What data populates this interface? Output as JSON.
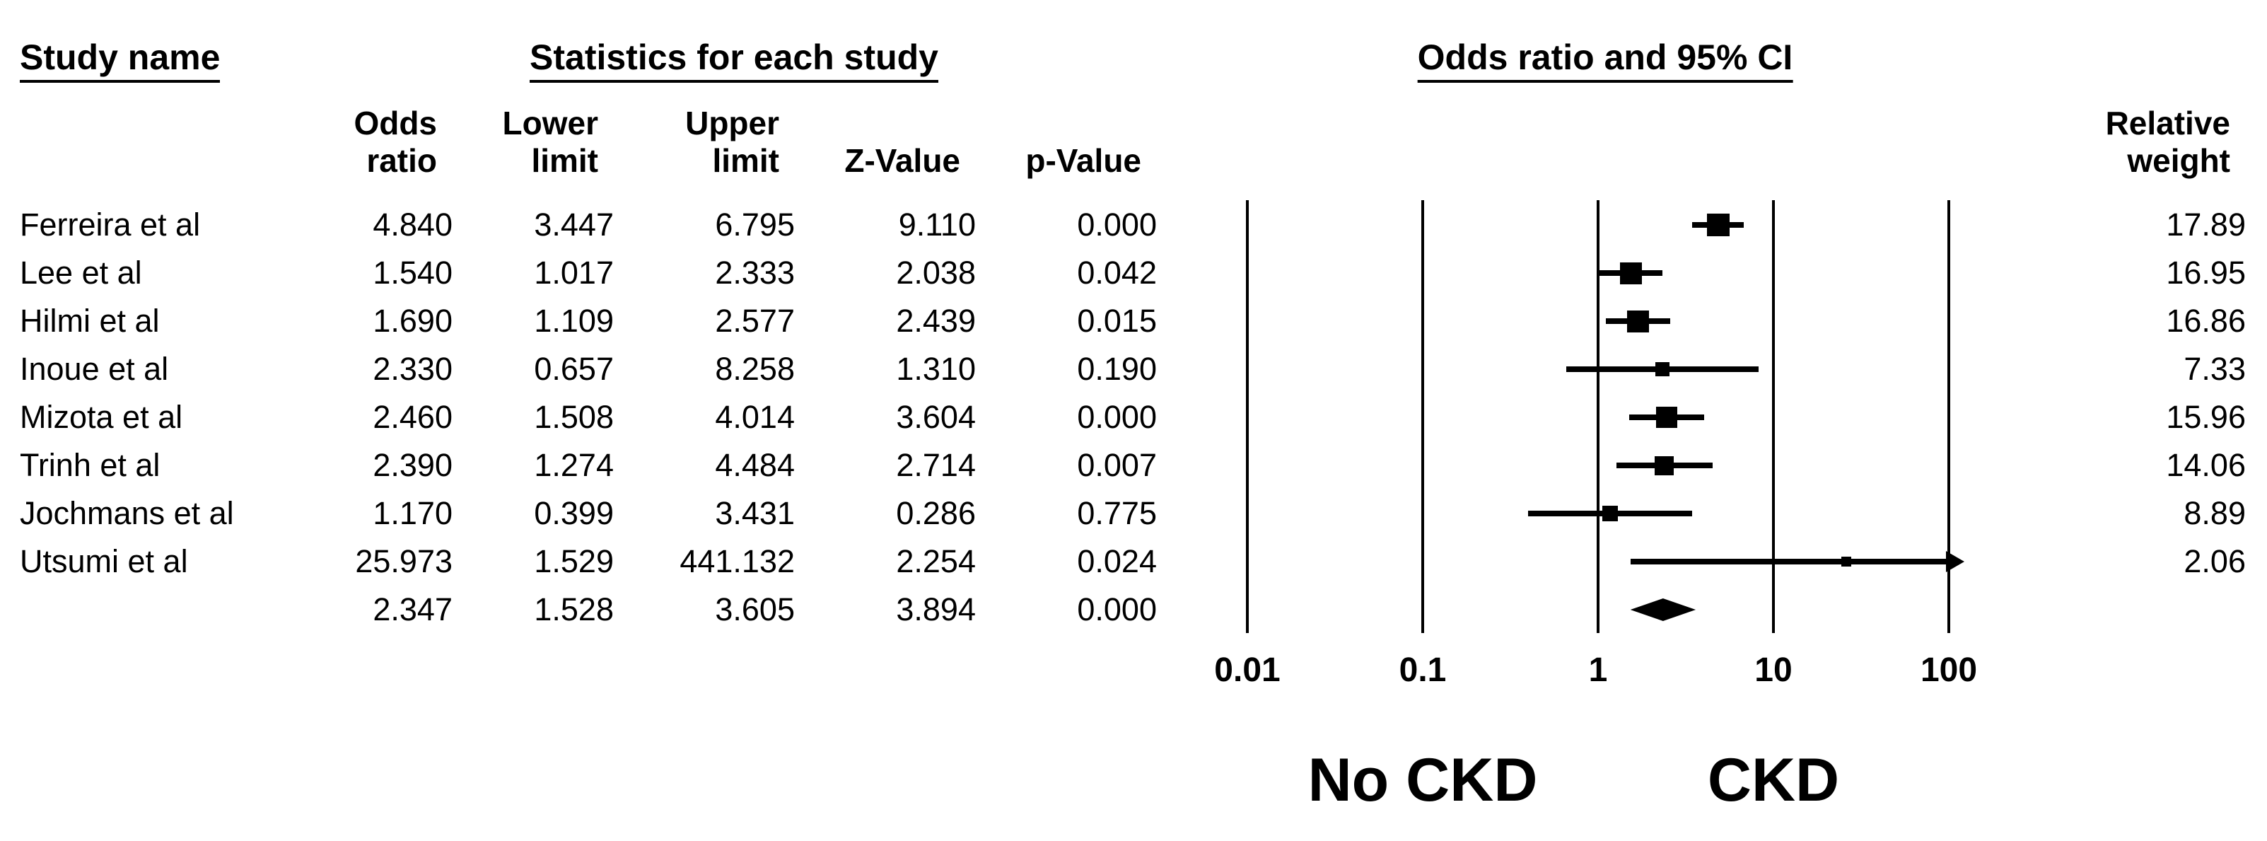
{
  "titles": {
    "study_name": "Study name",
    "statistics": "Statistics for each study",
    "plot": "Odds ratio and 95% CI"
  },
  "column_headers": {
    "odds_ratio": "Odds\nratio",
    "lower_limit": "Lower\nlimit",
    "upper_limit": "Upper\nlimit",
    "z_value": "Z-Value",
    "p_value": "p-Value",
    "relative_weight": "Relative\nweight"
  },
  "table": {
    "studies": [
      {
        "name": "Ferreira et al",
        "odds_ratio": "4.840",
        "lower_limit": "3.447",
        "upper_limit": "6.795",
        "z_value": "9.110",
        "p_value": "0.000",
        "relative_weight": "17.89"
      },
      {
        "name": "Lee et al",
        "odds_ratio": "1.540",
        "lower_limit": "1.017",
        "upper_limit": "2.333",
        "z_value": "2.038",
        "p_value": "0.042",
        "relative_weight": "16.95"
      },
      {
        "name": "Hilmi et al",
        "odds_ratio": "1.690",
        "lower_limit": "1.109",
        "upper_limit": "2.577",
        "z_value": "2.439",
        "p_value": "0.015",
        "relative_weight": "16.86"
      },
      {
        "name": "Inoue et al",
        "odds_ratio": "2.330",
        "lower_limit": "0.657",
        "upper_limit": "8.258",
        "z_value": "1.310",
        "p_value": "0.190",
        "relative_weight": "7.33"
      },
      {
        "name": "Mizota et al",
        "odds_ratio": "2.460",
        "lower_limit": "1.508",
        "upper_limit": "4.014",
        "z_value": "3.604",
        "p_value": "0.000",
        "relative_weight": "15.96"
      },
      {
        "name": "Trinh et al",
        "odds_ratio": "2.390",
        "lower_limit": "1.274",
        "upper_limit": "4.484",
        "z_value": "2.714",
        "p_value": "0.007",
        "relative_weight": "14.06"
      },
      {
        "name": "Jochmans et al",
        "odds_ratio": "1.170",
        "lower_limit": "0.399",
        "upper_limit": "3.431",
        "z_value": "0.286",
        "p_value": "0.775",
        "relative_weight": "8.89"
      },
      {
        "name": "Utsumi et al",
        "odds_ratio": "25.973",
        "lower_limit": "1.529",
        "upper_limit": "441.132",
        "z_value": "2.254",
        "p_value": "0.024",
        "relative_weight": "2.06"
      }
    ],
    "summary_row": {
      "name": "",
      "odds_ratio": "2.347",
      "lower_limit": "1.528",
      "upper_limit": "3.605",
      "z_value": "3.894",
      "p_value": "0.000",
      "relative_weight": ""
    }
  },
  "group_labels": {
    "left": "No CKD",
    "right": "CKD"
  },
  "colors": {
    "foreground": "#000000",
    "background": "#ffffff"
  },
  "chart_data": {
    "type": "scatter",
    "subtype": "forest-plot",
    "title": "Odds ratio and 95% CI",
    "x_scale": "log10",
    "xlim": [
      0.01,
      100
    ],
    "x_ticks": [
      0.01,
      0.1,
      1,
      10,
      100
    ],
    "x_tick_labels": [
      "0.01",
      "0.1",
      "1",
      "10",
      "100"
    ],
    "grid": "vertical-lines-at-ticks",
    "left_region_label": "No CKD",
    "right_region_label": "CKD",
    "marker": "square-sized-by-weight",
    "studies": [
      {
        "name": "Ferreira et al",
        "odds_ratio": 4.84,
        "lower": 3.447,
        "upper": 6.795,
        "z": 9.11,
        "p": 0.0,
        "weight": 17.89
      },
      {
        "name": "Lee et al",
        "odds_ratio": 1.54,
        "lower": 1.017,
        "upper": 2.333,
        "z": 2.038,
        "p": 0.042,
        "weight": 16.95
      },
      {
        "name": "Hilmi et al",
        "odds_ratio": 1.69,
        "lower": 1.109,
        "upper": 2.577,
        "z": 2.439,
        "p": 0.015,
        "weight": 16.86
      },
      {
        "name": "Inoue et al",
        "odds_ratio": 2.33,
        "lower": 0.657,
        "upper": 8.258,
        "z": 1.31,
        "p": 0.19,
        "weight": 7.33
      },
      {
        "name": "Mizota et al",
        "odds_ratio": 2.46,
        "lower": 1.508,
        "upper": 4.014,
        "z": 3.604,
        "p": 0.0,
        "weight": 15.96
      },
      {
        "name": "Trinh et al",
        "odds_ratio": 2.39,
        "lower": 1.274,
        "upper": 4.484,
        "z": 2.714,
        "p": 0.007,
        "weight": 14.06
      },
      {
        "name": "Jochmans et al",
        "odds_ratio": 1.17,
        "lower": 0.399,
        "upper": 3.431,
        "z": 0.286,
        "p": 0.775,
        "weight": 8.89
      },
      {
        "name": "Utsumi et al",
        "odds_ratio": 25.973,
        "lower": 1.529,
        "upper": 441.132,
        "z": 2.254,
        "p": 0.024,
        "weight": 2.06
      }
    ],
    "summary": {
      "odds_ratio": 2.347,
      "lower": 1.528,
      "upper": 3.605,
      "z": 3.894,
      "p": 0.0,
      "marker": "diamond"
    }
  }
}
